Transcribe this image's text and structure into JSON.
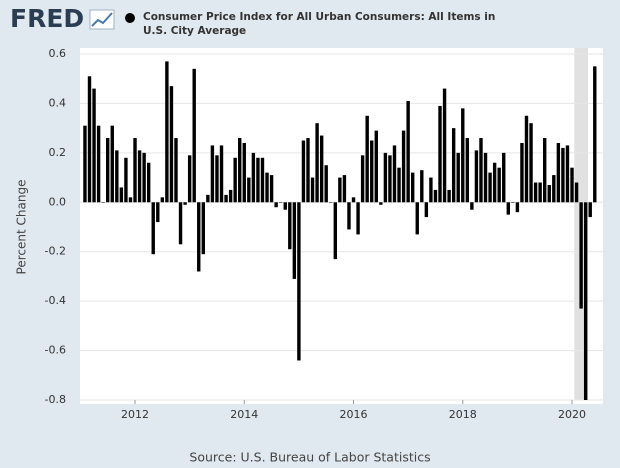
{
  "logo": "FRED",
  "chart_data": {
    "type": "bar",
    "series": [
      {
        "name": "Consumer Price Index for All Urban Consumers: All Items in U.S. City Average",
        "color": "#000000",
        "values": [
          0.31,
          0.51,
          0.46,
          0.31,
          0.0,
          0.26,
          0.31,
          0.21,
          0.06,
          0.18,
          0.02,
          0.26,
          0.21,
          0.2,
          0.16,
          -0.21,
          -0.08,
          0.02,
          0.57,
          0.47,
          0.26,
          -0.17,
          -0.01,
          0.19,
          0.54,
          -0.28,
          -0.21,
          0.03,
          0.23,
          0.19,
          0.23,
          0.03,
          0.05,
          0.18,
          0.26,
          0.24,
          0.1,
          0.2,
          0.18,
          0.18,
          0.12,
          0.11,
          -0.02,
          0.0,
          -0.03,
          -0.19,
          -0.31,
          -0.64,
          0.25,
          0.26,
          0.1,
          0.32,
          0.27,
          0.15,
          0.0,
          -0.23,
          0.1,
          0.11,
          -0.11,
          0.02,
          -0.13,
          0.19,
          0.35,
          0.25,
          0.29,
          -0.01,
          0.2,
          0.19,
          0.23,
          0.14,
          0.29,
          0.41,
          0.12,
          -0.13,
          0.13,
          -0.06,
          0.1,
          0.05,
          0.39,
          0.46,
          0.05,
          0.3,
          0.2,
          0.38,
          0.26,
          -0.03,
          0.21,
          0.26,
          0.2,
          0.12,
          0.16,
          0.14,
          0.2,
          -0.05,
          0.0,
          -0.04,
          0.24,
          0.35,
          0.32,
          0.08,
          0.08,
          0.26,
          0.07,
          0.11,
          0.24,
          0.22,
          0.23,
          0.14,
          0.08,
          -0.43,
          -0.8,
          -0.06,
          0.55
        ]
      }
    ],
    "x": [
      "2011-02",
      "2011-03",
      "2011-04",
      "2011-05",
      "2011-06",
      "2011-07",
      "2011-08",
      "2011-09",
      "2011-10",
      "2011-11",
      "2011-12",
      "2012-01",
      "2012-02",
      "2012-03",
      "2012-04",
      "2012-05",
      "2012-06",
      "2012-07",
      "2012-08",
      "2012-09",
      "2012-10",
      "2012-11",
      "2012-12",
      "2013-01",
      "2013-02",
      "2013-03",
      "2013-04",
      "2013-05",
      "2013-06",
      "2013-07",
      "2013-08",
      "2013-09",
      "2013-10",
      "2013-11",
      "2013-12",
      "2014-01",
      "2014-02",
      "2014-03",
      "2014-04",
      "2014-05",
      "2014-06",
      "2014-07",
      "2014-08",
      "2014-09",
      "2014-10",
      "2014-11",
      "2014-12",
      "2015-01",
      "2015-02",
      "2015-03",
      "2015-04",
      "2015-05",
      "2015-06",
      "2015-07",
      "2015-08",
      "2015-09",
      "2015-10",
      "2015-11",
      "2015-12",
      "2016-01",
      "2016-02",
      "2016-03",
      "2016-04",
      "2016-05",
      "2016-06",
      "2016-07",
      "2016-08",
      "2016-09",
      "2016-10",
      "2016-11",
      "2016-12",
      "2017-01",
      "2017-02",
      "2017-03",
      "2017-04",
      "2017-05",
      "2017-06",
      "2017-07",
      "2017-08",
      "2017-09",
      "2017-10",
      "2017-11",
      "2017-12",
      "2018-01",
      "2018-02",
      "2018-03",
      "2018-04",
      "2018-05",
      "2018-06",
      "2018-07",
      "2018-08",
      "2018-09",
      "2018-10",
      "2018-11",
      "2018-12",
      "2019-01",
      "2019-02",
      "2019-03",
      "2019-04",
      "2019-05",
      "2019-06",
      "2019-07",
      "2019-08",
      "2019-09",
      "2019-10",
      "2019-11",
      "2019-12",
      "2020-01",
      "2020-02",
      "2020-03",
      "2020-04",
      "2020-05",
      "2020-06"
    ],
    "xticks": [
      2012,
      2014,
      2016,
      2018,
      2020
    ],
    "ylabel": "Percent Change",
    "ylim": [
      -0.8,
      0.6
    ],
    "yticks": [
      -0.8,
      -0.6,
      -0.4,
      -0.2,
      {
        "value": 0,
        "label": "0.0"
      },
      0.2,
      0.4,
      0.6
    ],
    "grid": true,
    "recessions": [
      {
        "start": "2020-02",
        "end": "2020-04"
      }
    ],
    "source": "Source: U.S. Bureau of Labor Statistics"
  }
}
